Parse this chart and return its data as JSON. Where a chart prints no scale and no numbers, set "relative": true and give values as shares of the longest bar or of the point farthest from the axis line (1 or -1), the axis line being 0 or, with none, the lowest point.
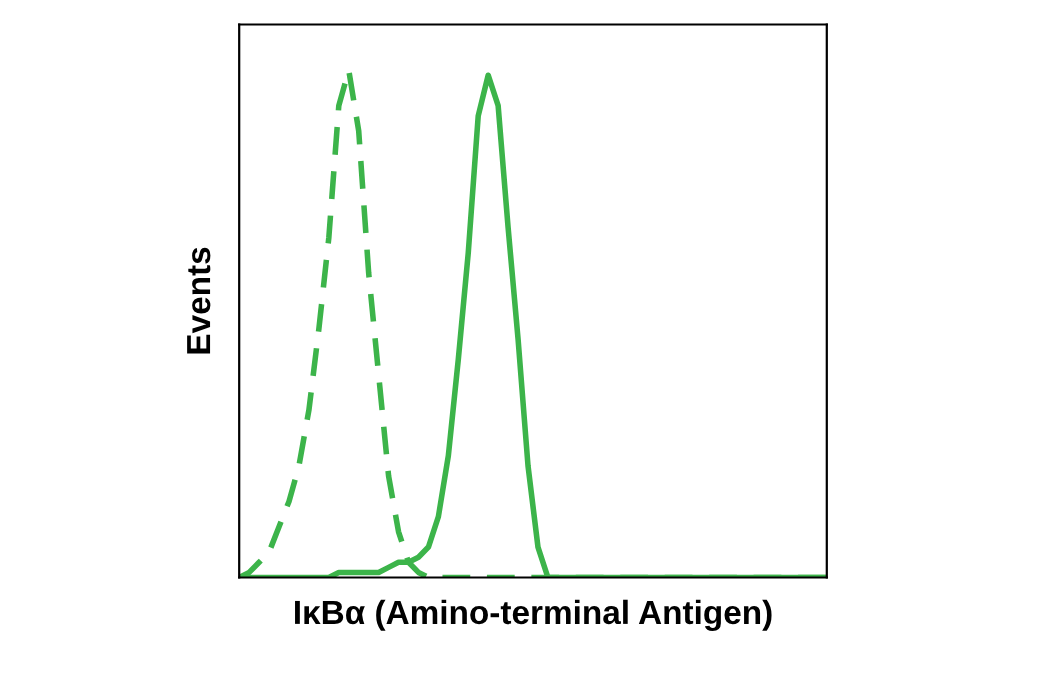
{
  "chart_data": {
    "type": "line",
    "relative": true,
    "xlabel": "IκBα (Amino-terminal Antigen)",
    "ylabel": "Events",
    "tick_labels": false,
    "grid": false,
    "legend": false,
    "marker": "none",
    "categories": [
      null,
      null,
      null,
      null,
      null,
      null,
      null,
      null,
      null,
      null,
      null,
      null,
      null,
      null,
      null,
      null,
      null,
      null,
      null,
      null,
      null,
      null,
      null,
      null,
      null,
      null,
      null,
      null,
      null,
      null,
      null,
      null,
      null,
      null,
      null,
      null,
      null,
      null,
      null,
      null,
      null,
      null,
      null,
      null,
      null,
      null,
      null,
      null,
      null,
      null,
      null,
      null,
      null,
      null,
      null,
      null,
      null,
      null,
      null,
      null
    ],
    "series": [
      {
        "color": "#3cb44a",
        "line_style": "dashed",
        "values": [
          0,
          0.01,
          0.03,
          0.05,
          0.1,
          0.15,
          0.22,
          0.33,
          0.49,
          0.67,
          0.93,
          1.0,
          0.88,
          0.6,
          0.4,
          0.2,
          0.09,
          0.03,
          0.01,
          0,
          0,
          0,
          0,
          0,
          0,
          0,
          0,
          0,
          0,
          0,
          0,
          0,
          0,
          0,
          0,
          0,
          0,
          0,
          0,
          0,
          0,
          0,
          0,
          0,
          0,
          0,
          0,
          0,
          0,
          0,
          0,
          0,
          0,
          0,
          0,
          0,
          0,
          0,
          0,
          0
        ]
      },
      {
        "color": "#3cb44a",
        "line_style": "solid",
        "values": [
          0,
          0,
          0,
          0,
          0,
          0,
          0,
          0,
          0,
          0,
          0.01,
          0.01,
          0.01,
          0.01,
          0.01,
          0.02,
          0.03,
          0.03,
          0.04,
          0.06,
          0.12,
          0.24,
          0.43,
          0.64,
          0.91,
          0.99,
          0.93,
          0.69,
          0.47,
          0.22,
          0.06,
          0,
          0,
          0,
          0,
          0,
          0,
          0,
          0,
          0,
          0,
          0,
          0,
          0,
          0,
          0,
          0,
          0,
          0,
          0,
          0,
          0,
          0,
          0,
          0,
          0,
          0,
          0,
          0,
          0
        ]
      }
    ]
  }
}
